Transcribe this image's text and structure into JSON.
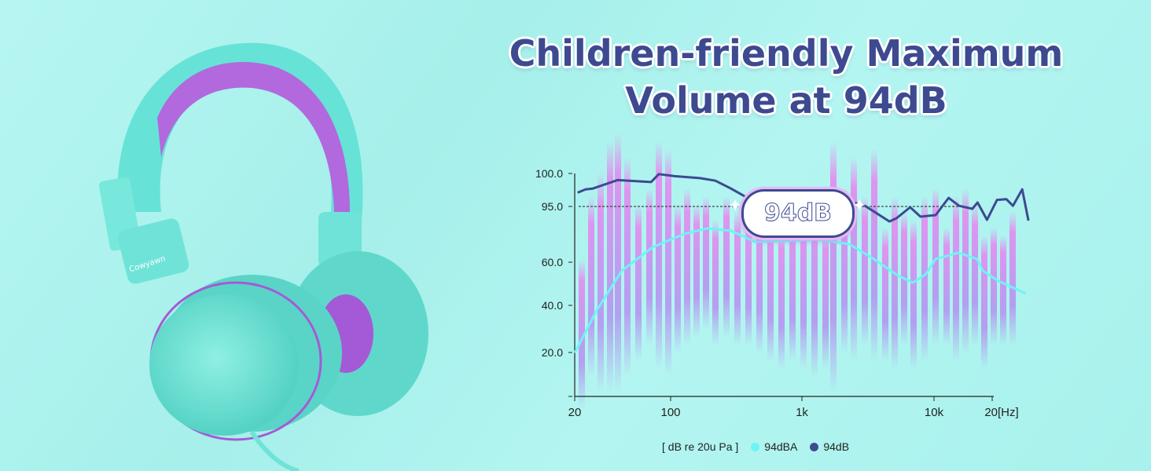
{
  "headline": {
    "line1": "Children-friendly Maximum",
    "line2": "Volume at 94dB"
  },
  "product": {
    "brand_label": "Cowyawn",
    "colors": {
      "body": "#5fe0d2",
      "accent": "#a45ad6"
    }
  },
  "badge": {
    "label": "94dB"
  },
  "chart_data": {
    "type": "line",
    "title": "",
    "xlabel": "",
    "ylabel": "",
    "x_unit": "[Hz]",
    "x_scale": "log",
    "x_ticks": [
      {
        "value": 20,
        "label": "20"
      },
      {
        "value": 100,
        "label": "100"
      },
      {
        "value": 1000,
        "label": "1k"
      },
      {
        "value": 10000,
        "label": "10k"
      },
      {
        "value": 20000,
        "label": "20[Hz]"
      }
    ],
    "y_ticks": [
      {
        "value": 100,
        "label": "100.0"
      },
      {
        "value": 95,
        "label": "95.0"
      },
      {
        "value": 60,
        "label": "60.0"
      },
      {
        "value": 40,
        "label": "40.0"
      },
      {
        "value": 20,
        "label": "20.0"
      },
      {
        "value": 0,
        "label": "-"
      }
    ],
    "reference_line": {
      "value": 95,
      "style": "dashed"
    },
    "legend": {
      "note": "[ dB re 20u Pa ]",
      "placement": "bottom"
    },
    "grid": false,
    "series": [
      {
        "name": "94dBA",
        "color": "#6ff3f5",
        "points": [
          [
            20,
            19.8
          ],
          [
            29,
            38
          ],
          [
            44,
            56
          ],
          [
            74,
            69.4
          ],
          [
            126,
            77.7
          ],
          [
            191,
            81.2
          ],
          [
            290,
            79.7
          ],
          [
            437,
            72.8
          ],
          [
            760,
            73.3
          ],
          [
            1320,
            74.3
          ],
          [
            2290,
            71.3
          ],
          [
            3500,
            62
          ],
          [
            5200,
            54.2
          ],
          [
            6900,
            50.5
          ],
          [
            8600,
            54.2
          ],
          [
            10200,
            62
          ],
          [
            13400,
            65.9
          ],
          [
            16700,
            62
          ],
          [
            17900,
            56
          ],
          [
            21500,
            51.3
          ],
          [
            29900,
            45.5
          ]
        ]
      },
      {
        "name": "94dB",
        "color": "#3d4a90",
        "points": [
          [
            21,
            97.1
          ],
          [
            24,
            97.6
          ],
          [
            27,
            97.7
          ],
          [
            41,
            99
          ],
          [
            72,
            98.7
          ],
          [
            82,
            99.9
          ],
          [
            107,
            99.6
          ],
          [
            167,
            99.3
          ],
          [
            219,
            98.9
          ],
          [
            289,
            97.7
          ],
          [
            370,
            96.5
          ],
          [
            500,
            95.6
          ],
          [
            1000,
            95.6
          ],
          [
            2000,
            96
          ],
          [
            2450,
            95.6
          ],
          [
            3000,
            95.1
          ],
          [
            4600,
            85.6
          ],
          [
            5200,
            87.6
          ],
          [
            6600,
            94.5
          ],
          [
            7900,
            88.6
          ],
          [
            10200,
            89.6
          ],
          [
            11900,
            96.3
          ],
          [
            13500,
            95.1
          ],
          [
            15800,
            93.5
          ],
          [
            16800,
            95.6
          ],
          [
            18800,
            86.6
          ],
          [
            21200,
            96
          ],
          [
            23700,
            96.1
          ],
          [
            25600,
            95.1
          ],
          [
            28600,
            97.6
          ],
          [
            30800,
            86.1
          ]
        ]
      }
    ]
  }
}
